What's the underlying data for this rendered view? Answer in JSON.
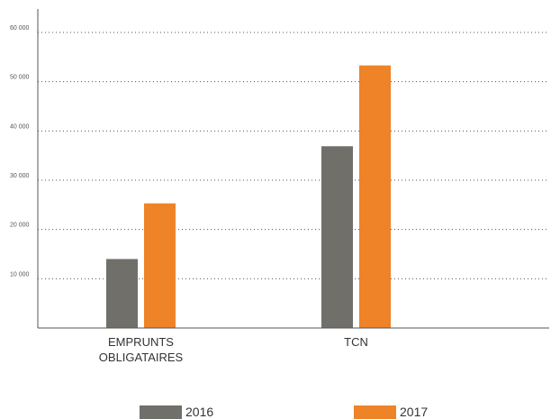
{
  "chart_data": {
    "type": "bar",
    "title": "",
    "xlabel": "",
    "ylabel": "",
    "categories": [
      "EMPRUNTS OBLIGATAIRES",
      "TCN"
    ],
    "category_lines": [
      [
        "EMPRUNTS",
        "OBLIGATAIRES"
      ],
      [
        "TCN"
      ]
    ],
    "series": [
      {
        "name": "2016",
        "color": "#706f6a",
        "values": [
          14000,
          36900
        ]
      },
      {
        "name": "2017",
        "color": "#ee8328",
        "values": [
          25300,
          53300
        ]
      }
    ],
    "ylim": [
      0,
      60000
    ],
    "yticks": [
      {
        "value": 10000,
        "label": "10 000"
      },
      {
        "value": 20000,
        "label": "20 000"
      },
      {
        "value": 30000,
        "label": "30 000"
      },
      {
        "value": 40000,
        "label": "40 000"
      },
      {
        "value": 50000,
        "label": "50 000"
      },
      {
        "value": 60000,
        "label": "60 000"
      }
    ],
    "grid": true,
    "grid_style": "dotted",
    "legend_position": "bottom"
  }
}
